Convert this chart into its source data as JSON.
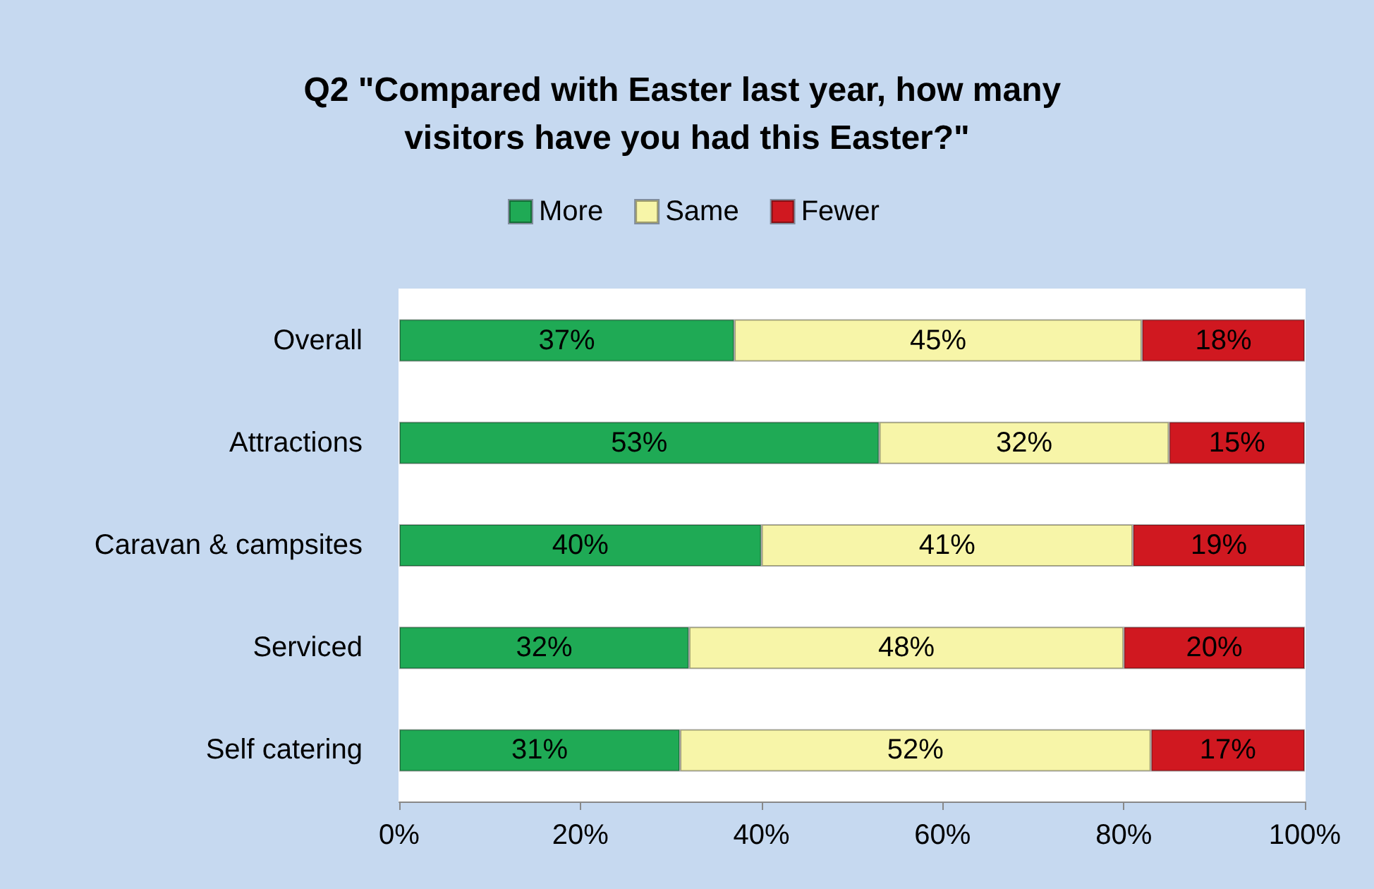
{
  "chart_data": {
    "type": "bar",
    "orientation": "horizontal",
    "stacked": true,
    "title": "Q2 \"Compared with Easter last year, how many visitors have you had this Easter?\"",
    "categories": [
      "Overall",
      "Attractions",
      "Caravan & campsites",
      "Serviced",
      "Self catering"
    ],
    "series": [
      {
        "name": "More",
        "color": "#1faa55",
        "values": [
          37,
          53,
          40,
          32,
          31
        ],
        "value_labels": [
          "37%",
          "53%",
          "40%",
          "32%",
          "31%"
        ]
      },
      {
        "name": "Same",
        "color": "#f7f5a8",
        "values": [
          45,
          32,
          41,
          48,
          52
        ],
        "value_labels": [
          "45%",
          "32%",
          "41%",
          "48%",
          "52%"
        ]
      },
      {
        "name": "Fewer",
        "color": "#d01820",
        "values": [
          18,
          15,
          19,
          20,
          17
        ],
        "value_labels": [
          "18%",
          "15%",
          "19%",
          "20%",
          "17%"
        ]
      }
    ],
    "xlim": [
      0,
      100
    ],
    "xticks": [
      {
        "value": 0,
        "label": "0%"
      },
      {
        "value": 20,
        "label": "20%"
      },
      {
        "value": 40,
        "label": "40%"
      },
      {
        "value": 60,
        "label": "60%"
      },
      {
        "value": 80,
        "label": "80%"
      },
      {
        "value": 100,
        "label": "100%"
      }
    ],
    "grid": false,
    "legend": "top"
  }
}
